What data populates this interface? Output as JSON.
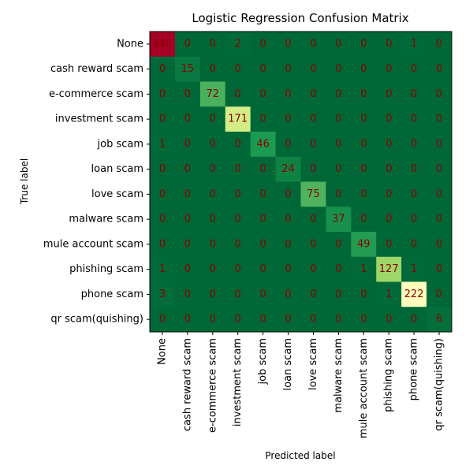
{
  "chart_data": {
    "type": "heatmap",
    "title": "Logistic Regression Confusion Matrix",
    "xlabel": "Predicted label",
    "ylabel": "True label",
    "labels": [
      "None",
      "cash reward scam",
      "e-commerce scam",
      "investment scam",
      "job scam",
      "loan scam",
      "love scam",
      "malware scam",
      "mule account scam",
      "phishing scam",
      "phone scam",
      "qr scam(quishing)"
    ],
    "matrix": [
      [
        440,
        0,
        0,
        2,
        0,
        0,
        0,
        0,
        0,
        0,
        1,
        0
      ],
      [
        0,
        15,
        0,
        0,
        0,
        0,
        0,
        0,
        0,
        0,
        0,
        0
      ],
      [
        0,
        0,
        72,
        0,
        0,
        0,
        0,
        0,
        0,
        0,
        0,
        0
      ],
      [
        0,
        0,
        0,
        171,
        0,
        0,
        0,
        0,
        0,
        0,
        0,
        0
      ],
      [
        1,
        0,
        0,
        0,
        46,
        0,
        0,
        0,
        0,
        0,
        0,
        0
      ],
      [
        0,
        0,
        0,
        0,
        0,
        24,
        0,
        0,
        0,
        0,
        0,
        0
      ],
      [
        0,
        0,
        0,
        0,
        0,
        0,
        75,
        0,
        0,
        0,
        0,
        0
      ],
      [
        0,
        0,
        0,
        0,
        0,
        0,
        0,
        37,
        0,
        0,
        0,
        0
      ],
      [
        0,
        0,
        0,
        0,
        0,
        0,
        0,
        0,
        49,
        0,
        0,
        0
      ],
      [
        1,
        0,
        0,
        0,
        0,
        0,
        0,
        0,
        1,
        127,
        1,
        0
      ],
      [
        3,
        0,
        0,
        0,
        0,
        0,
        0,
        0,
        0,
        1,
        222,
        0
      ],
      [
        0,
        0,
        0,
        0,
        0,
        0,
        0,
        0,
        0,
        0,
        0,
        6
      ]
    ],
    "colormap": "RdYlGn_r",
    "value_range": [
      0,
      440
    ],
    "text_color": "#8b0000"
  }
}
